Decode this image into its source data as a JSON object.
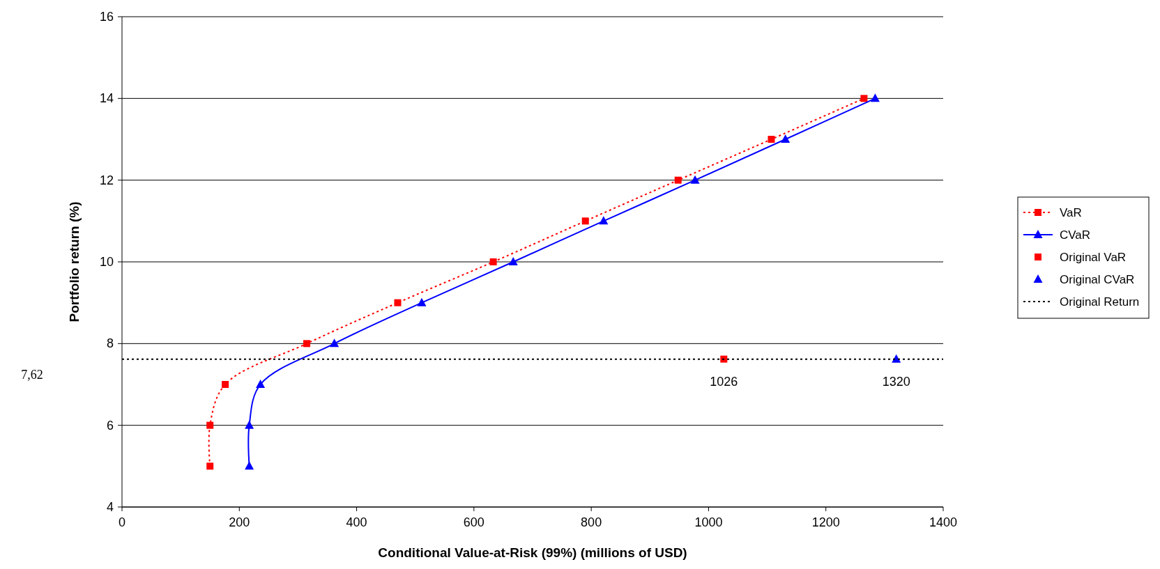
{
  "chart_data": {
    "type": "line",
    "xlabel": "Conditional Value-at-Risk (99%) (millions of USD)",
    "ylabel": "Portfolio return (%)",
    "xlim": [
      0,
      1400
    ],
    "xticks": [
      0,
      200,
      400,
      600,
      800,
      1000,
      1200,
      1400
    ],
    "ylim": [
      4,
      16
    ],
    "yticks": [
      4,
      6,
      8,
      10,
      12,
      14,
      16
    ],
    "grid": "y",
    "legend": "right",
    "annotations": [
      "7,62",
      {
        "text": "1026",
        "x": 1026,
        "y": 7.62
      },
      {
        "text": "1320",
        "x": 1320,
        "y": 7.62
      }
    ],
    "series": [
      {
        "name": "VaR",
        "color": "#ff0000",
        "marker": "square",
        "line_style": "dotted",
        "x": [
          150,
          150,
          176,
          315,
          470,
          633,
          790,
          948,
          1107,
          1265
        ],
        "values": [
          5,
          6,
          7,
          8,
          9,
          10,
          11,
          12,
          13,
          14
        ]
      },
      {
        "name": "CVaR",
        "color": "#0000ff",
        "marker": "triangle",
        "line_style": "solid",
        "x": [
          217,
          217,
          236,
          362,
          511,
          667,
          821,
          977,
          1131,
          1284
        ],
        "values": [
          5,
          6,
          7,
          8,
          9,
          10,
          11,
          12,
          13,
          14
        ]
      },
      {
        "name": "Original VaR",
        "color": "#ff0000",
        "type": "scatter",
        "marker": "square",
        "x": [
          1026
        ],
        "values": [
          7.62
        ]
      },
      {
        "name": "Original CVaR",
        "color": "#0000ff",
        "type": "scatter",
        "marker": "triangle",
        "x": [
          1320
        ],
        "values": [
          7.62
        ]
      },
      {
        "name": "Original Return",
        "color": "#000000",
        "marker": "none",
        "line_style": "dotted",
        "x": [
          0,
          1400
        ],
        "values": [
          7.62,
          7.62
        ]
      }
    ]
  }
}
